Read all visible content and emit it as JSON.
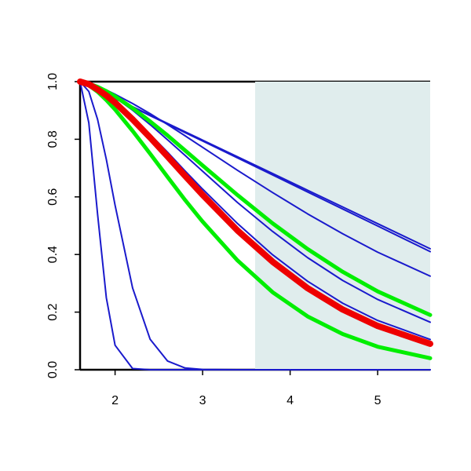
{
  "chart_data": {
    "type": "line",
    "x": [
      1.6,
      1.7,
      1.8,
      1.9,
      2.0,
      2.2,
      2.4,
      2.6,
      2.8,
      3.0,
      3.4,
      3.8,
      4.2,
      4.6,
      5.0,
      5.6
    ],
    "series": [
      {
        "color": "#1a1acc",
        "width": 2,
        "values": [
          1,
          0.857,
          0.54,
          0.25,
          0.085,
          0.004,
          0,
          0,
          0,
          0,
          0,
          0,
          0,
          0,
          0,
          0
        ]
      },
      {
        "color": "#1a1acc",
        "width": 2,
        "values": [
          1,
          0.966,
          0.869,
          0.73,
          0.571,
          0.284,
          0.106,
          0.03,
          0.006,
          0.001,
          0,
          0,
          0,
          0,
          0,
          0
        ]
      },
      {
        "color": "#1a1acc",
        "width": 2,
        "values": [
          1,
          0.991,
          0.975,
          0.955,
          0.931,
          0.877,
          0.817,
          0.755,
          0.69,
          0.627,
          0.507,
          0.399,
          0.307,
          0.231,
          0.171,
          0.105
        ]
      },
      {
        "color": "#1a1acc",
        "width": 2,
        "values": [
          1,
          0.993,
          0.98,
          0.964,
          0.945,
          0.901,
          0.851,
          0.798,
          0.744,
          0.689,
          0.58,
          0.48,
          0.389,
          0.31,
          0.244,
          0.165
        ]
      },
      {
        "color": "#1a1acc",
        "width": 2,
        "values": [
          1,
          0.994,
          0.983,
          0.971,
          0.956,
          0.924,
          0.889,
          0.851,
          0.812,
          0.772,
          0.692,
          0.615,
          0.541,
          0.472,
          0.408,
          0.325
        ]
      },
      {
        "color": "#1a1acc",
        "width": 2,
        "values": [
          1,
          0.985,
          0.971,
          0.956,
          0.941,
          0.912,
          0.882,
          0.853,
          0.823,
          0.794,
          0.735,
          0.676,
          0.617,
          0.558,
          0.499,
          0.41
        ]
      },
      {
        "color": "#1a1acc",
        "width": 2,
        "values": [
          1,
          0.986,
          0.971,
          0.957,
          0.942,
          0.913,
          0.884,
          0.855,
          0.826,
          0.797,
          0.739,
          0.681,
          0.623,
          0.565,
          0.507,
          0.42
        ]
      },
      {
        "color": "#00ee00",
        "width": 5,
        "values": [
          1,
          0.987,
          0.965,
          0.936,
          0.903,
          0.829,
          0.75,
          0.669,
          0.589,
          0.514,
          0.379,
          0.269,
          0.185,
          0.124,
          0.08,
          0.04
        ]
      },
      {
        "color": "#00ee00",
        "width": 5,
        "values": [
          1,
          0.993,
          0.982,
          0.967,
          0.949,
          0.908,
          0.862,
          0.813,
          0.761,
          0.709,
          0.606,
          0.508,
          0.419,
          0.34,
          0.272,
          0.19
        ]
      },
      {
        "color": "#ee0000",
        "width": 8,
        "values": [
          1,
          0.991,
          0.973,
          0.952,
          0.927,
          0.869,
          0.806,
          0.74,
          0.673,
          0.607,
          0.483,
          0.375,
          0.283,
          0.209,
          0.152,
          0.09
        ]
      }
    ],
    "xlim": [
      1.6,
      5.6
    ],
    "ylim": [
      0,
      1
    ],
    "xticks": [
      2,
      3,
      4,
      5
    ],
    "yticks": [
      {
        "value": 0,
        "label": "0.0"
      },
      0.2,
      0.4,
      0.6,
      0.8,
      {
        "value": 1,
        "label": "1.0"
      }
    ],
    "shaded_region": {
      "xlim": [
        3.6,
        5.6
      ],
      "color": "#e0eded"
    }
  }
}
